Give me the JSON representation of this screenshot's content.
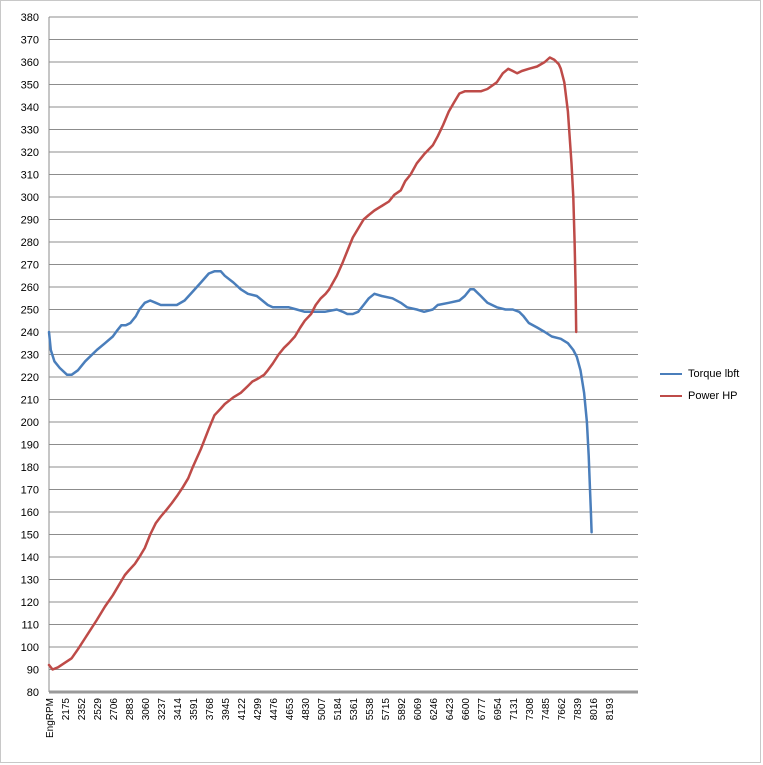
{
  "chart_data": {
    "type": "line",
    "title": "",
    "xlabel": "",
    "ylabel": "",
    "ylim": [
      80,
      380
    ],
    "ytick_step": 10,
    "x_tick_labels": [
      "EngRPM",
      "2175",
      "2352",
      "2529",
      "2706",
      "2883",
      "3060",
      "3237",
      "3414",
      "3591",
      "3768",
      "3945",
      "4122",
      "4299",
      "4476",
      "4653",
      "4830",
      "5007",
      "5184",
      "5361",
      "5538",
      "5715",
      "5892",
      "6069",
      "6246",
      "6423",
      "6600",
      "6777",
      "6954",
      "7131",
      "7308",
      "7485",
      "7662",
      "7839",
      "8016",
      "8193"
    ],
    "xlim": [
      2000,
      8400
    ],
    "grid": "horizontal",
    "legend_position": "right",
    "series": [
      {
        "name": "Torque lbft",
        "color": "#4a7ebb",
        "points": [
          [
            2000,
            240
          ],
          [
            2020,
            232
          ],
          [
            2060,
            227
          ],
          [
            2120,
            224
          ],
          [
            2200,
            221
          ],
          [
            2250,
            221
          ],
          [
            2320,
            223
          ],
          [
            2400,
            227
          ],
          [
            2529,
            232
          ],
          [
            2620,
            235
          ],
          [
            2706,
            238
          ],
          [
            2760,
            241
          ],
          [
            2800,
            243
          ],
          [
            2850,
            243
          ],
          [
            2900,
            244
          ],
          [
            2960,
            247
          ],
          [
            3000,
            250
          ],
          [
            3060,
            253
          ],
          [
            3120,
            254
          ],
          [
            3180,
            253
          ],
          [
            3237,
            252
          ],
          [
            3300,
            252
          ],
          [
            3414,
            252
          ],
          [
            3500,
            254
          ],
          [
            3591,
            258
          ],
          [
            3680,
            262
          ],
          [
            3768,
            266
          ],
          [
            3830,
            267
          ],
          [
            3900,
            267
          ],
          [
            3945,
            265
          ],
          [
            4040,
            262
          ],
          [
            4122,
            259
          ],
          [
            4200,
            257
          ],
          [
            4299,
            256
          ],
          [
            4360,
            254
          ],
          [
            4420,
            252
          ],
          [
            4476,
            251
          ],
          [
            4560,
            251
          ],
          [
            4653,
            251
          ],
          [
            4740,
            250
          ],
          [
            4830,
            249
          ],
          [
            4940,
            249
          ],
          [
            5050,
            249
          ],
          [
            5184,
            250
          ],
          [
            5250,
            249
          ],
          [
            5300,
            248
          ],
          [
            5361,
            248
          ],
          [
            5420,
            249
          ],
          [
            5480,
            252
          ],
          [
            5538,
            255
          ],
          [
            5600,
            257
          ],
          [
            5680,
            256
          ],
          [
            5800,
            255
          ],
          [
            5892,
            253
          ],
          [
            5960,
            251
          ],
          [
            6069,
            250
          ],
          [
            6150,
            249
          ],
          [
            6246,
            250
          ],
          [
            6300,
            252
          ],
          [
            6423,
            253
          ],
          [
            6540,
            254
          ],
          [
            6600,
            256
          ],
          [
            6660,
            259
          ],
          [
            6700,
            259
          ],
          [
            6777,
            256
          ],
          [
            6850,
            253
          ],
          [
            6954,
            251
          ],
          [
            7050,
            250
          ],
          [
            7131,
            250
          ],
          [
            7200,
            249
          ],
          [
            7250,
            247
          ],
          [
            7308,
            244
          ],
          [
            7400,
            242
          ],
          [
            7485,
            240
          ],
          [
            7562,
            238
          ],
          [
            7662,
            237
          ],
          [
            7740,
            235
          ],
          [
            7800,
            232
          ],
          [
            7839,
            229
          ],
          [
            7880,
            223
          ],
          [
            7920,
            213
          ],
          [
            7950,
            200
          ],
          [
            7970,
            185
          ],
          [
            7985,
            170
          ],
          [
            7995,
            160
          ],
          [
            8002,
            151
          ]
        ]
      },
      {
        "name": "Power HP",
        "color": "#be4b48",
        "points": [
          [
            2000,
            92
          ],
          [
            2040,
            90
          ],
          [
            2100,
            91
          ],
          [
            2175,
            93
          ],
          [
            2250,
            95
          ],
          [
            2320,
            99
          ],
          [
            2400,
            104
          ],
          [
            2529,
            112
          ],
          [
            2620,
            118
          ],
          [
            2706,
            123
          ],
          [
            2780,
            128
          ],
          [
            2840,
            132
          ],
          [
            2883,
            134
          ],
          [
            2950,
            137
          ],
          [
            3000,
            140
          ],
          [
            3060,
            144
          ],
          [
            3120,
            150
          ],
          [
            3180,
            155
          ],
          [
            3237,
            158
          ],
          [
            3300,
            161
          ],
          [
            3360,
            164
          ],
          [
            3414,
            167
          ],
          [
            3480,
            171
          ],
          [
            3540,
            175
          ],
          [
            3591,
            180
          ],
          [
            3680,
            188
          ],
          [
            3768,
            197
          ],
          [
            3830,
            203
          ],
          [
            3900,
            206
          ],
          [
            3945,
            208
          ],
          [
            4040,
            211
          ],
          [
            4122,
            213
          ],
          [
            4200,
            216
          ],
          [
            4250,
            218
          ],
          [
            4299,
            219
          ],
          [
            4380,
            221
          ],
          [
            4420,
            223
          ],
          [
            4476,
            226
          ],
          [
            4540,
            230
          ],
          [
            4600,
            233
          ],
          [
            4653,
            235
          ],
          [
            4720,
            238
          ],
          [
            4780,
            242
          ],
          [
            4830,
            245
          ],
          [
            4900,
            248
          ],
          [
            4950,
            252
          ],
          [
            5007,
            255
          ],
          [
            5060,
            257
          ],
          [
            5100,
            259
          ],
          [
            5184,
            265
          ],
          [
            5250,
            271
          ],
          [
            5300,
            276
          ],
          [
            5361,
            282
          ],
          [
            5420,
            286
          ],
          [
            5480,
            290
          ],
          [
            5538,
            292
          ],
          [
            5600,
            294
          ],
          [
            5680,
            296
          ],
          [
            5760,
            298
          ],
          [
            5820,
            301
          ],
          [
            5892,
            303
          ],
          [
            5940,
            307
          ],
          [
            6000,
            310
          ],
          [
            6069,
            315
          ],
          [
            6150,
            319
          ],
          [
            6246,
            323
          ],
          [
            6300,
            327
          ],
          [
            6360,
            332
          ],
          [
            6423,
            338
          ],
          [
            6480,
            342
          ],
          [
            6540,
            346
          ],
          [
            6600,
            347
          ],
          [
            6680,
            347
          ],
          [
            6777,
            347
          ],
          [
            6850,
            348
          ],
          [
            6954,
            351
          ],
          [
            7020,
            355
          ],
          [
            7080,
            357
          ],
          [
            7131,
            356
          ],
          [
            7180,
            355
          ],
          [
            7230,
            356
          ],
          [
            7308,
            357
          ],
          [
            7400,
            358
          ],
          [
            7485,
            360
          ],
          [
            7540,
            362
          ],
          [
            7590,
            361
          ],
          [
            7640,
            359
          ],
          [
            7662,
            357
          ],
          [
            7700,
            351
          ],
          [
            7740,
            338
          ],
          [
            7780,
            315
          ],
          [
            7800,
            300
          ],
          [
            7815,
            280
          ],
          [
            7825,
            260
          ],
          [
            7832,
            240
          ]
        ]
      }
    ]
  }
}
